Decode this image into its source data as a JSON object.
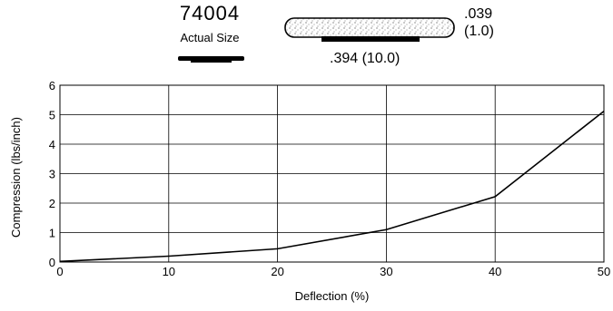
{
  "header": {
    "part_number": "74004",
    "actual_size_label": "Actual Size",
    "thickness_in": ".039",
    "thickness_mm": "(1.0)",
    "width_label": ".394 (10.0)"
  },
  "chart_data": {
    "type": "line",
    "title": "",
    "xlabel": "Deflection (%)",
    "ylabel": "Compression (lbs/inch)",
    "x_ticks": [
      0,
      10,
      20,
      30,
      40,
      50
    ],
    "y_ticks": [
      0,
      1,
      2,
      3,
      4,
      5,
      6
    ],
    "xlim": [
      0,
      50
    ],
    "ylim": [
      0,
      6
    ],
    "grid": true,
    "series": [
      {
        "x": [
          0,
          10,
          20,
          30,
          40,
          50
        ],
        "values": [
          0.02,
          0.2,
          0.45,
          1.1,
          2.22,
          5.12
        ],
        "color": "#000000"
      }
    ]
  }
}
